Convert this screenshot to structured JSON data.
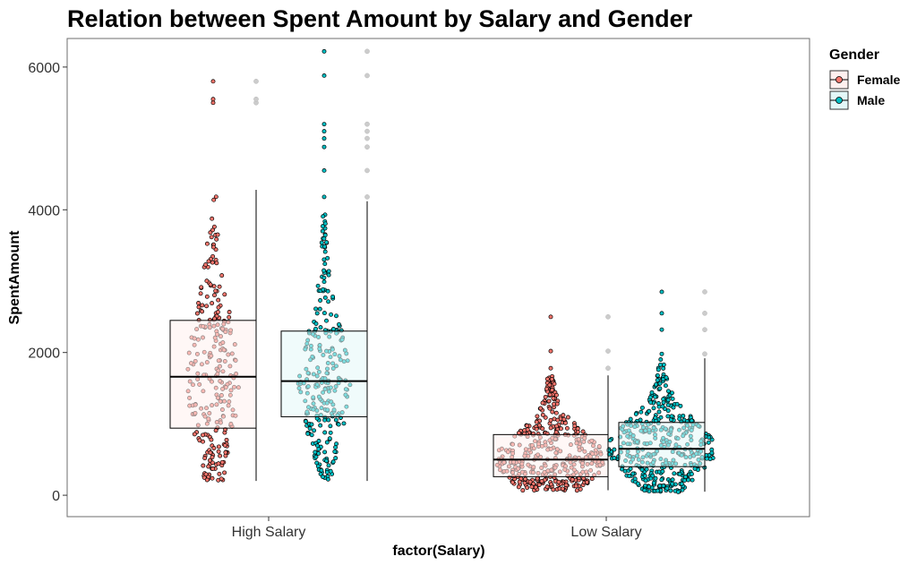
{
  "chart_data": {
    "type": "boxplot",
    "title": "Relation between Spent Amount by Salary and Gender",
    "xlabel": "factor(Salary)",
    "ylabel": "SpentAmount",
    "ylim": [
      -300,
      6400
    ],
    "yticks": [
      0,
      2000,
      4000,
      6000
    ],
    "categories": [
      "High Salary",
      "Low Salary"
    ],
    "grid": false,
    "legend": {
      "title": "Gender",
      "position": "right",
      "entries": [
        "Female",
        "Male"
      ]
    },
    "series": [
      {
        "name": "Female",
        "color": "#F8766D",
        "fill": "#FFF0EF",
        "boxes": [
          {
            "category": "High Salary",
            "min": 200,
            "q1": 940,
            "median": 1660,
            "q3": 2450,
            "max": 4280,
            "outliers": [
              5500,
              5550,
              5800
            ]
          },
          {
            "category": "Low Salary",
            "min": 70,
            "q1": 260,
            "median": 500,
            "q3": 850,
            "max": 1680,
            "outliers": [
              1780,
              2020,
              2500
            ]
          }
        ]
      },
      {
        "name": "Male",
        "color": "#00BFC4",
        "fill": "#E3F7F8",
        "boxes": [
          {
            "category": "High Salary",
            "min": 200,
            "q1": 1100,
            "median": 1600,
            "q3": 2300,
            "max": 4120,
            "outliers": [
              4180,
              4550,
              4880,
              5000,
              5100,
              5200,
              5880,
              6220
            ]
          },
          {
            "category": "Low Salary",
            "min": 50,
            "q1": 400,
            "median": 650,
            "q3": 1020,
            "max": 1920,
            "outliers": [
              1980,
              2320,
              2550,
              2850
            ]
          }
        ]
      }
    ]
  }
}
